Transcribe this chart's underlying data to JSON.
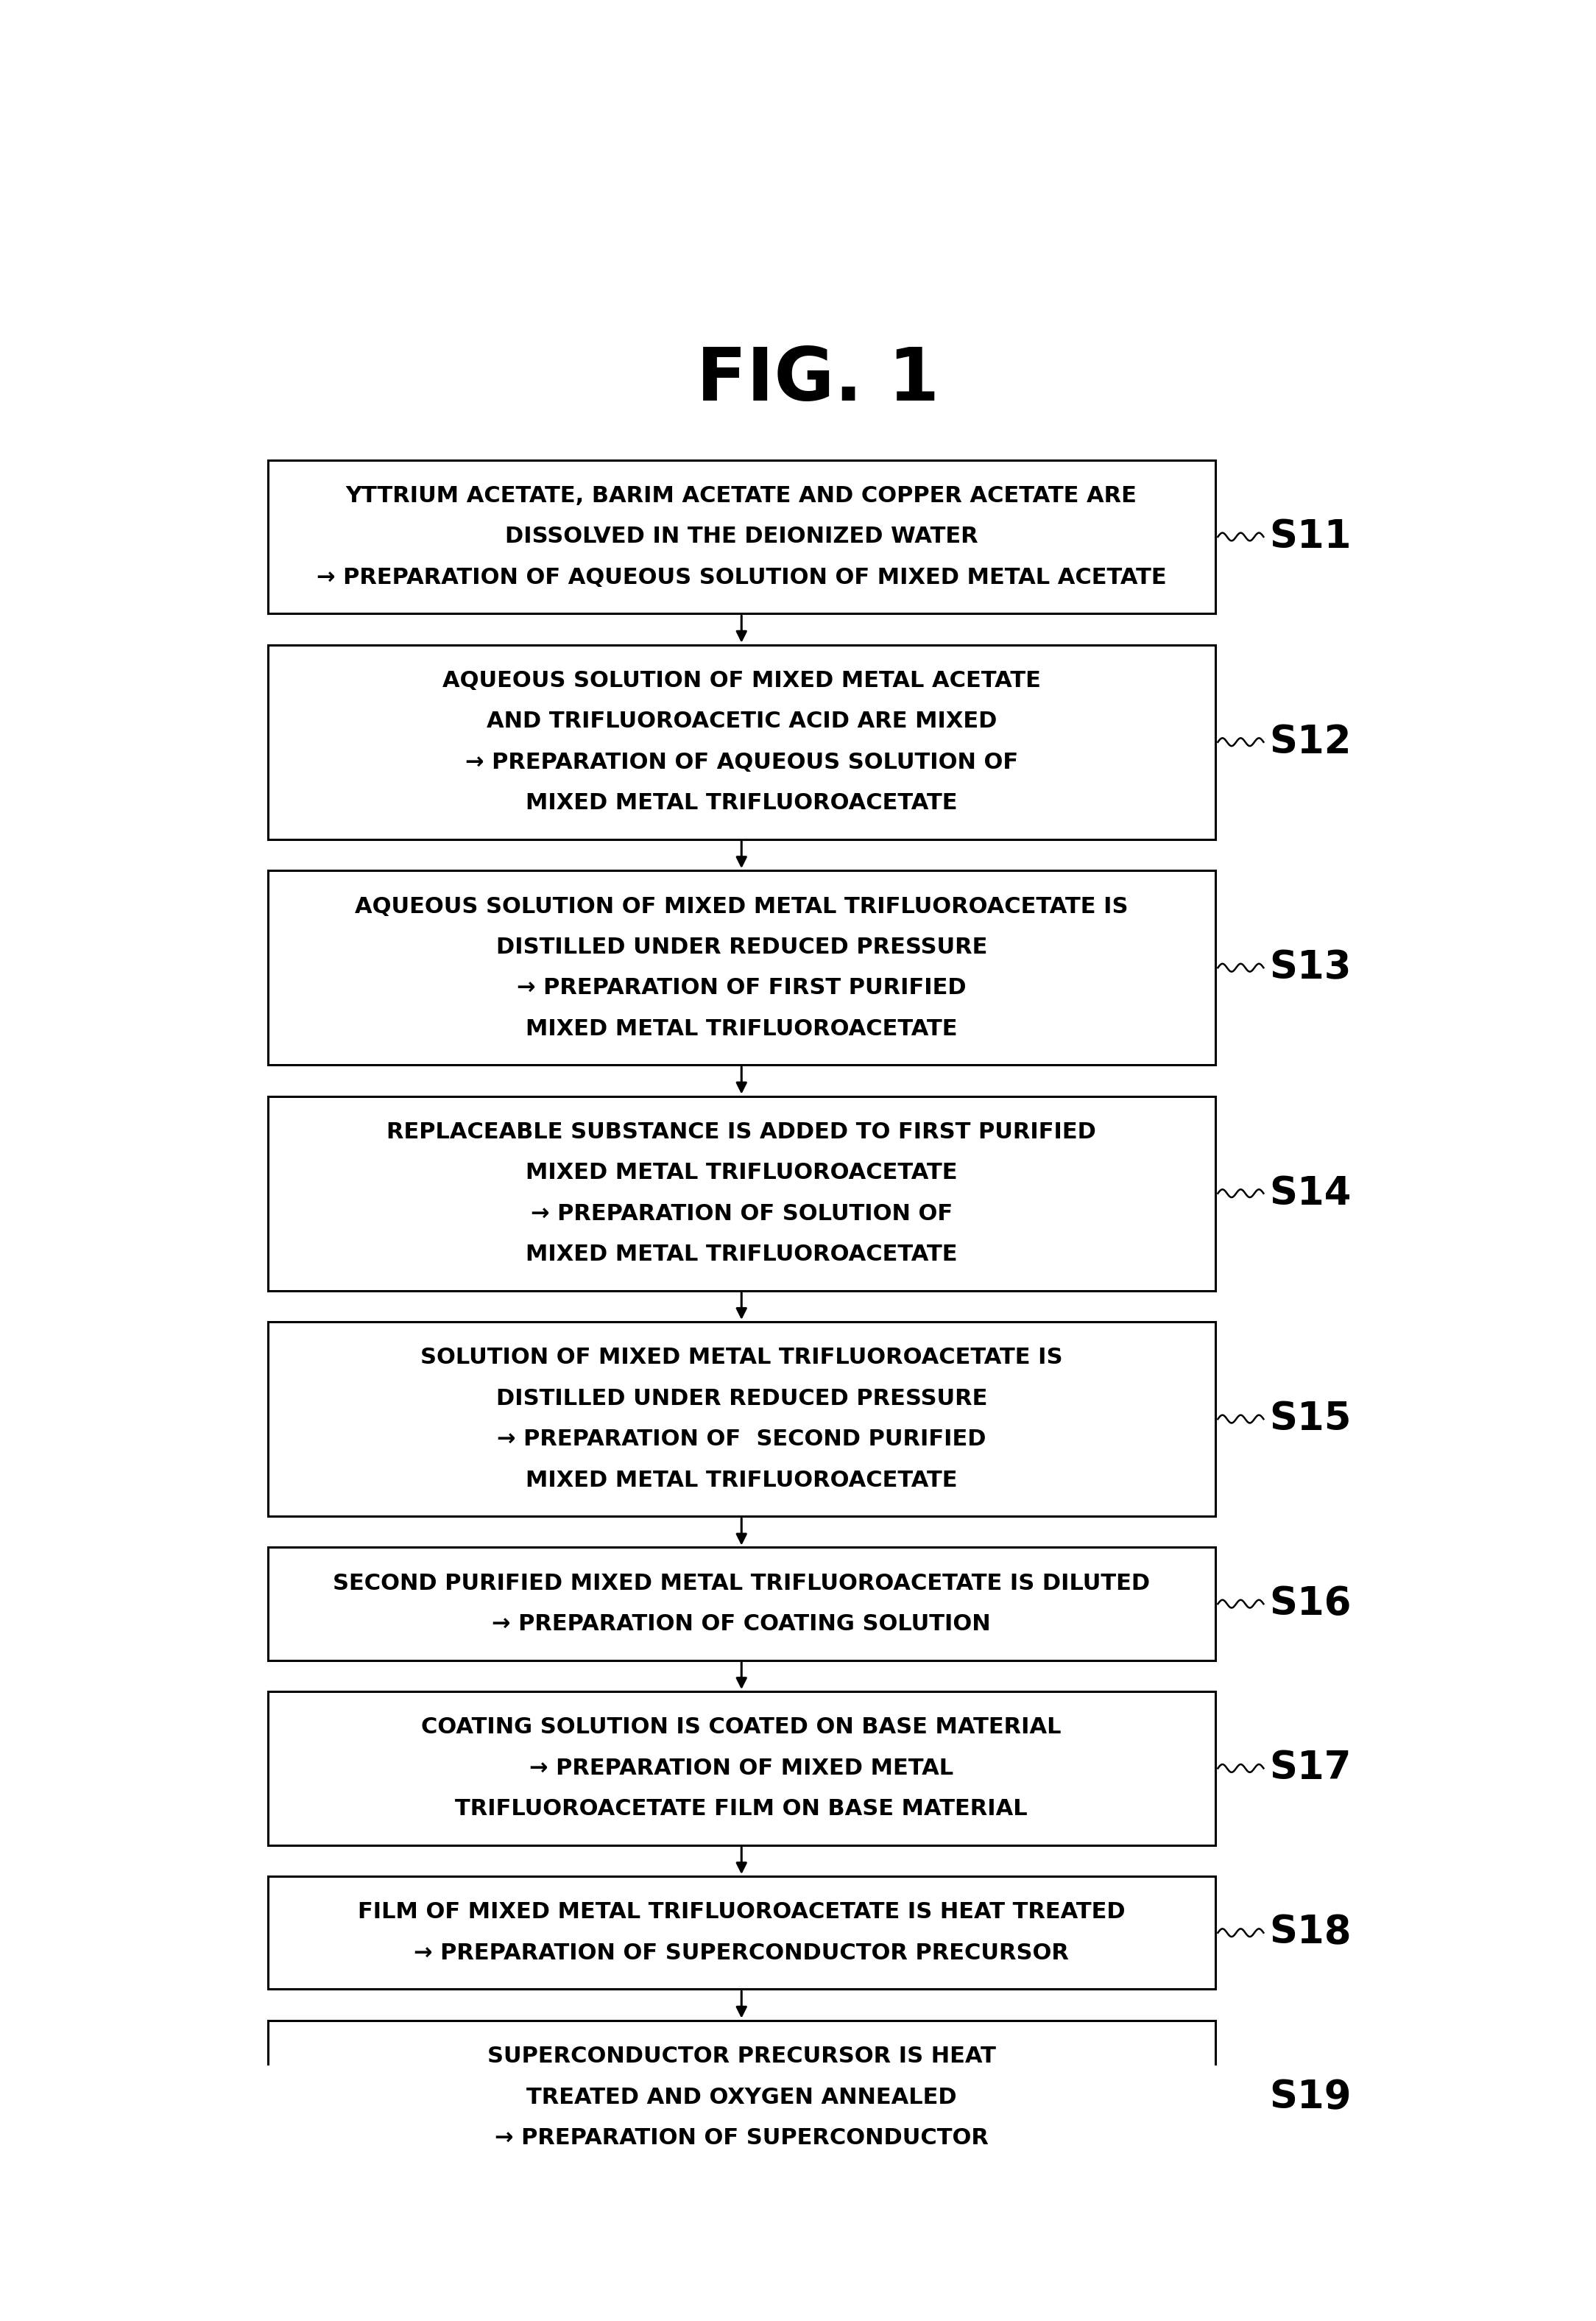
{
  "title": "FIG. 1",
  "title_fontsize": 72,
  "background_color": "#ffffff",
  "box_color": "#ffffff",
  "box_edge_color": "#000000",
  "text_color": "#000000",
  "arrow_color": "#000000",
  "steps": [
    {
      "id": "S11",
      "lines": [
        "YTTRIUM ACETATE, BARIM ACETATE AND COPPER ACETATE ARE",
        "DISSOLVED IN THE DEIONIZED WATER",
        "→ PREPARATION OF AQUEOUS SOLUTION OF MIXED METAL ACETATE"
      ],
      "n_lines": 3
    },
    {
      "id": "S12",
      "lines": [
        "AQUEOUS SOLUTION OF MIXED METAL ACETATE",
        "AND TRIFLUOROACETIC ACID ARE MIXED",
        "→ PREPARATION OF AQUEOUS SOLUTION OF",
        "MIXED METAL TRIFLUOROACETATE"
      ],
      "n_lines": 4
    },
    {
      "id": "S13",
      "lines": [
        "AQUEOUS SOLUTION OF MIXED METAL TRIFLUOROACETATE IS",
        "DISTILLED UNDER REDUCED PRESSURE",
        "→ PREPARATION OF FIRST PURIFIED",
        "MIXED METAL TRIFLUOROACETATE"
      ],
      "n_lines": 4
    },
    {
      "id": "S14",
      "lines": [
        "REPLACEABLE SUBSTANCE IS ADDED TO FIRST PURIFIED",
        "MIXED METAL TRIFLUOROACETATE",
        "→ PREPARATION OF SOLUTION OF",
        "MIXED METAL TRIFLUOROACETATE"
      ],
      "n_lines": 4
    },
    {
      "id": "S15",
      "lines": [
        "SOLUTION OF MIXED METAL TRIFLUOROACETATE IS",
        "DISTILLED UNDER REDUCED PRESSURE",
        "→ PREPARATION OF  SECOND PURIFIED",
        "MIXED METAL TRIFLUOROACETATE"
      ],
      "n_lines": 4
    },
    {
      "id": "S16",
      "lines": [
        "SECOND PURIFIED MIXED METAL TRIFLUOROACETATE IS DILUTED",
        "→ PREPARATION OF COATING SOLUTION"
      ],
      "n_lines": 2
    },
    {
      "id": "S17",
      "lines": [
        "COATING SOLUTION IS COATED ON BASE MATERIAL",
        "→ PREPARATION OF MIXED METAL",
        "TRIFLUOROACETATE FILM ON BASE MATERIAL"
      ],
      "n_lines": 3
    },
    {
      "id": "S18",
      "lines": [
        "FILM OF MIXED METAL TRIFLUOROACETATE IS HEAT TREATED",
        "→ PREPARATION OF SUPERCONDUCTOR PRECURSOR"
      ],
      "n_lines": 2
    },
    {
      "id": "S19",
      "lines": [
        "SUPERCONDUCTOR PRECURSOR IS HEAT",
        "TREATED AND OXYGEN ANNEALED",
        "→ PREPARATION OF SUPERCONDUCTOR"
      ],
      "n_lines": 3
    }
  ],
  "text_fontsize": 22,
  "label_fontsize": 38
}
